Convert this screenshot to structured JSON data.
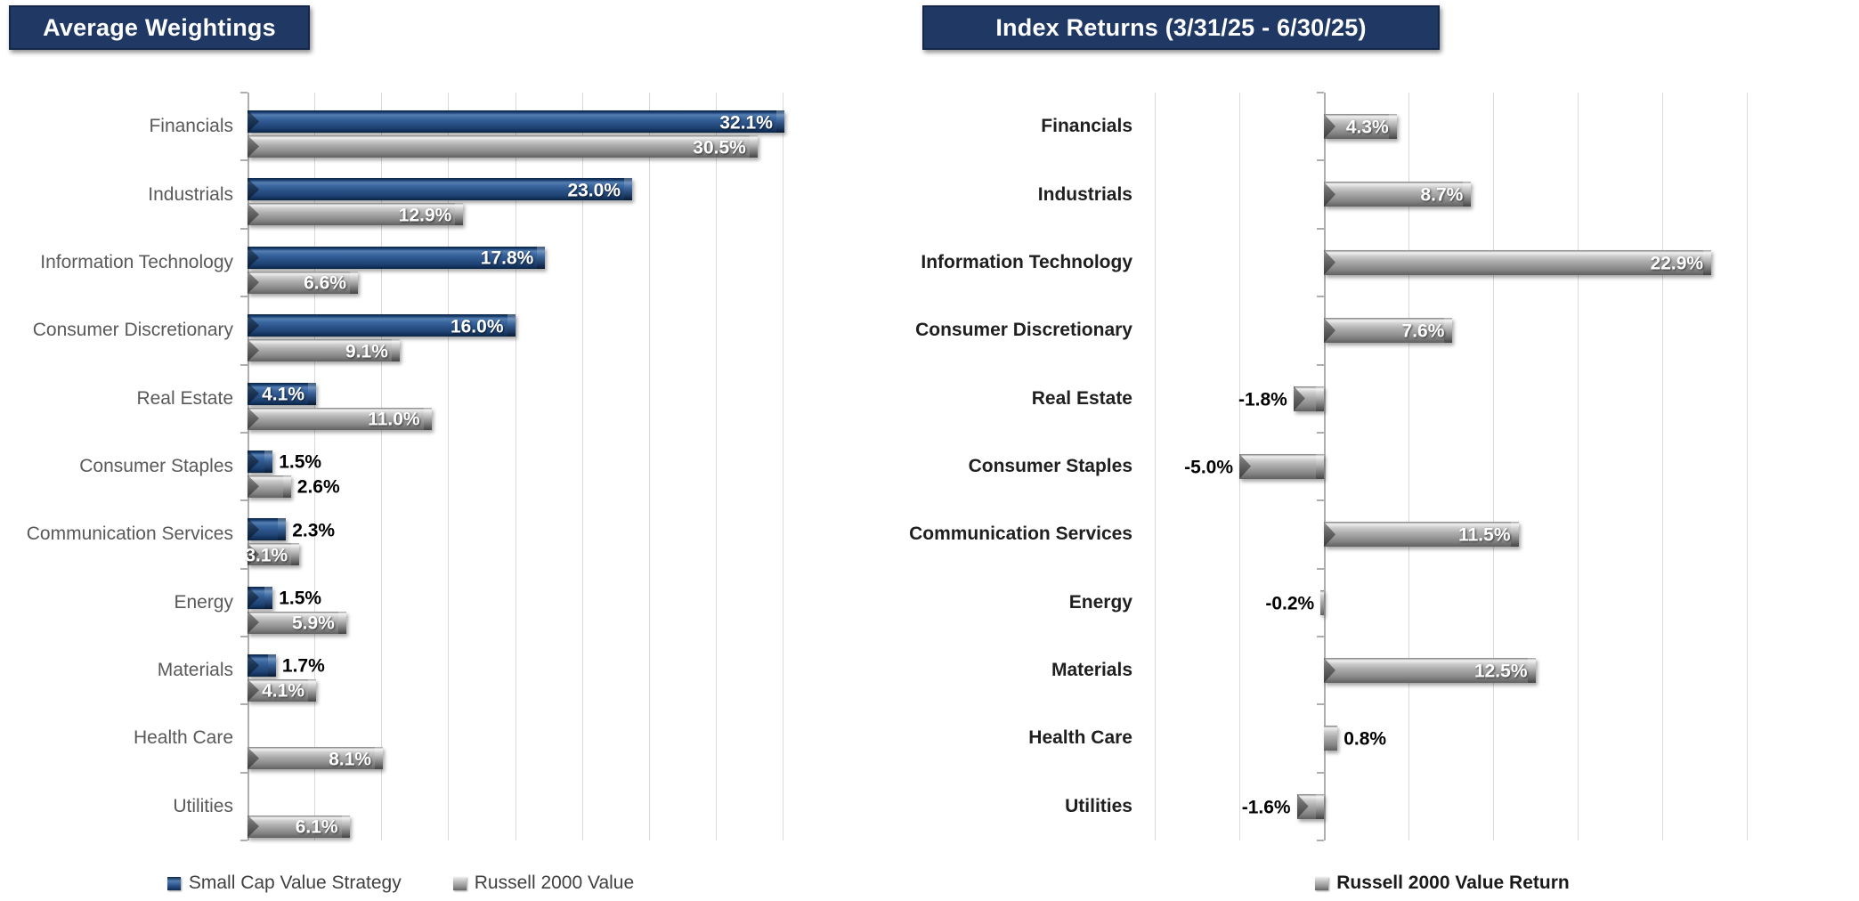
{
  "page": {
    "background": "#FFFFFF",
    "colors": {
      "title_bg": "#1F3864",
      "title_text": "#FFFFFF",
      "bar_blue": "#1F4E79",
      "bar_gray": "#A6A6A6",
      "gridline": "#D9D9D9",
      "axis_line": "#AEAEAE",
      "left_category_label": "#595959",
      "right_category_label": "#1F1F1F"
    }
  },
  "chart_data": [
    {
      "type": "bar",
      "orientation": "horizontal",
      "title": "Average Weightings",
      "categories": [
        "Financials",
        "Industrials",
        "Information Technology",
        "Consumer Discretionary",
        "Real Estate",
        "Consumer Staples",
        "Communication Services",
        "Energy",
        "Materials",
        "Health Care",
        "Utilities"
      ],
      "series": [
        {
          "name": "Small Cap Value Strategy",
          "color": "#1F4E79",
          "values": [
            32.1,
            23.0,
            17.8,
            16.0,
            4.1,
            1.5,
            2.3,
            1.5,
            1.7,
            null,
            null
          ],
          "labels_inside": [
            true,
            true,
            true,
            true,
            true,
            false,
            false,
            false,
            false,
            null,
            null
          ]
        },
        {
          "name": "Russell 2000 Value",
          "color": "#A6A6A6",
          "values": [
            30.5,
            12.9,
            6.6,
            9.1,
            11.0,
            2.6,
            3.1,
            5.9,
            4.1,
            8.1,
            6.1
          ],
          "labels_inside": [
            true,
            true,
            true,
            true,
            true,
            false,
            true,
            true,
            true,
            true,
            true
          ]
        }
      ],
      "value_suffix": "%",
      "value_decimals": 1,
      "xlim": [
        0,
        32
      ],
      "gridline_interval": 4,
      "grid": true,
      "x_tick_labels_shown": false,
      "legend_position": "bottom"
    },
    {
      "type": "bar",
      "orientation": "horizontal",
      "title": "Index Returns (3/31/25 - 6/30/25)",
      "categories": [
        "Financials",
        "Industrials",
        "Information Technology",
        "Consumer Discretionary",
        "Real Estate",
        "Consumer Staples",
        "Communication Services",
        "Energy",
        "Materials",
        "Health Care",
        "Utilities"
      ],
      "series": [
        {
          "name": "Russell 2000 Value Return",
          "color": "#A6A6A6",
          "values": [
            4.3,
            8.7,
            22.9,
            7.6,
            -1.8,
            -5.0,
            11.5,
            -0.2,
            12.5,
            0.8,
            -1.6
          ],
          "labels_inside": [
            true,
            true,
            true,
            true,
            false,
            false,
            true,
            false,
            true,
            false,
            false
          ]
        }
      ],
      "value_suffix": "%",
      "value_decimals": 1,
      "xlim": [
        -10,
        25
      ],
      "gridline_interval": 5,
      "grid": true,
      "x_tick_labels_shown": false,
      "legend_position": "bottom"
    }
  ]
}
